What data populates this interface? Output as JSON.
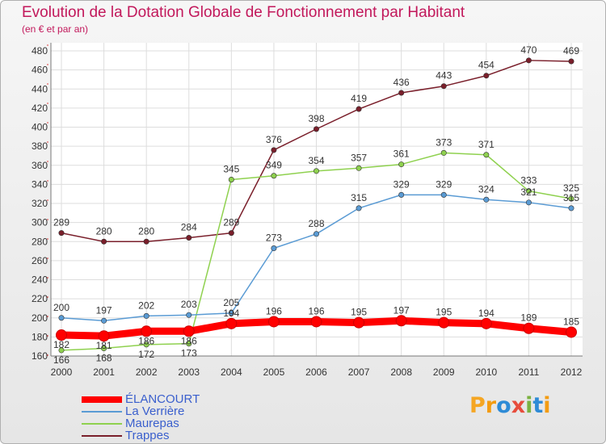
{
  "title": "Evolution de la Dotation Globale de Fonctionnement par Habitant",
  "subtitle": "(en € et par an)",
  "logo": {
    "letters": [
      "P",
      "r",
      "o",
      "x",
      "i",
      "t",
      "i"
    ],
    "colors": [
      "#f5a623",
      "#f39c12",
      "#2e8bd6",
      "#e74c3c",
      "#7bb241",
      "#2e8bd6",
      "#f39c12"
    ]
  },
  "chart_data": {
    "type": "line",
    "title": "Evolution de la Dotation Globale de Fonctionnement par Habitant",
    "subtitle": "(en € et par an)",
    "xlabel": "",
    "ylabel": "",
    "categories": [
      "2000",
      "2001",
      "2002",
      "2003",
      "2004",
      "2005",
      "2006",
      "2007",
      "2008",
      "2009",
      "2010",
      "2011",
      "2012"
    ],
    "ylim": [
      160,
      480
    ],
    "yticks": [
      160,
      180,
      200,
      220,
      240,
      260,
      280,
      300,
      320,
      340,
      360,
      380,
      400,
      420,
      440,
      460,
      480
    ],
    "grid": true,
    "legend_position": "bottom-left",
    "series": [
      {
        "name": "ÉLANCOURT",
        "color": "#ff0000",
        "values": [
          182,
          181,
          186,
          186,
          194,
          196,
          196,
          195,
          197,
          195,
          194,
          189,
          185
        ]
      },
      {
        "name": "La Verrière",
        "color": "#5a9bd4",
        "values": [
          200,
          197,
          202,
          203,
          205,
          273,
          288,
          315,
          329,
          329,
          324,
          321,
          315
        ]
      },
      {
        "name": "Maurepas",
        "color": "#8fd14f",
        "values": [
          166,
          168,
          172,
          173,
          345,
          349,
          354,
          357,
          361,
          373,
          371,
          333,
          325
        ]
      },
      {
        "name": "Trappes",
        "color": "#7a1f2b",
        "values": [
          289,
          280,
          280,
          284,
          289,
          376,
          398,
          419,
          436,
          443,
          454,
          470,
          469
        ]
      }
    ]
  }
}
